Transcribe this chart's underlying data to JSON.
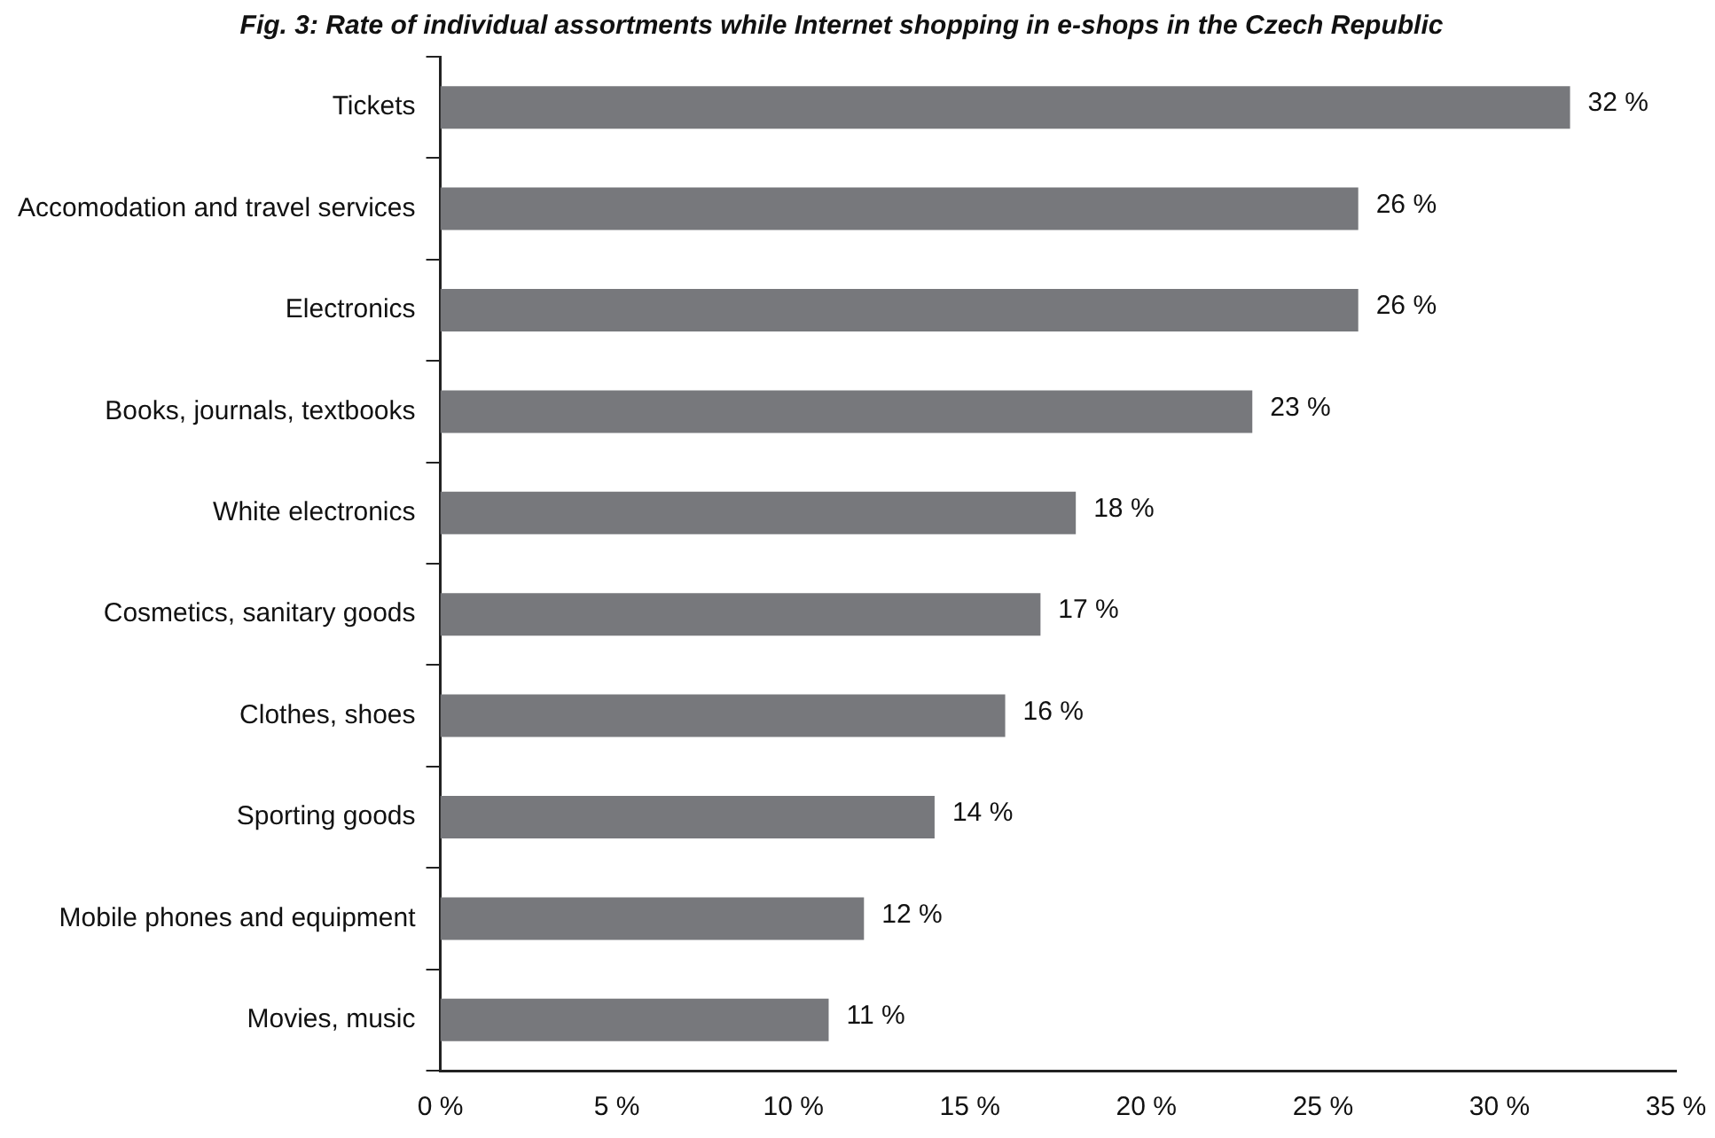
{
  "chart_data": {
    "type": "bar",
    "orientation": "horizontal",
    "title": "Fig. 3: Rate of individual assortments while Internet shopping in e-shops in the Czech Republic",
    "categories": [
      "Tickets",
      "Accomodation and travel services",
      "Electronics",
      "Books, journals, textbooks",
      "White electronics",
      "Cosmetics, sanitary goods",
      "Clothes, shoes",
      "Sporting goods",
      "Mobile phones and equipment",
      "Movies, music"
    ],
    "values": [
      32,
      26,
      26,
      23,
      18,
      17,
      16,
      14,
      12,
      11
    ],
    "value_labels": [
      "32 %",
      "26 %",
      "26 %",
      "23 %",
      "18 %",
      "17 %",
      "16 %",
      "14 %",
      "12 %",
      "11 %"
    ],
    "color": "#77787c",
    "xlim": [
      0,
      35
    ],
    "xticks": [
      {
        "value": 0,
        "label": "0 %"
      },
      {
        "value": 5,
        "label": "5 %"
      },
      {
        "value": 10,
        "label": "10 %"
      },
      {
        "value": 15,
        "label": "15 %"
      },
      {
        "value": 20,
        "label": "20 %"
      },
      {
        "value": 25,
        "label": "25 %"
      },
      {
        "value": 30,
        "label": "30 %"
      },
      {
        "value": 35,
        "label": "35 %"
      }
    ],
    "grid": false,
    "legend": false
  }
}
